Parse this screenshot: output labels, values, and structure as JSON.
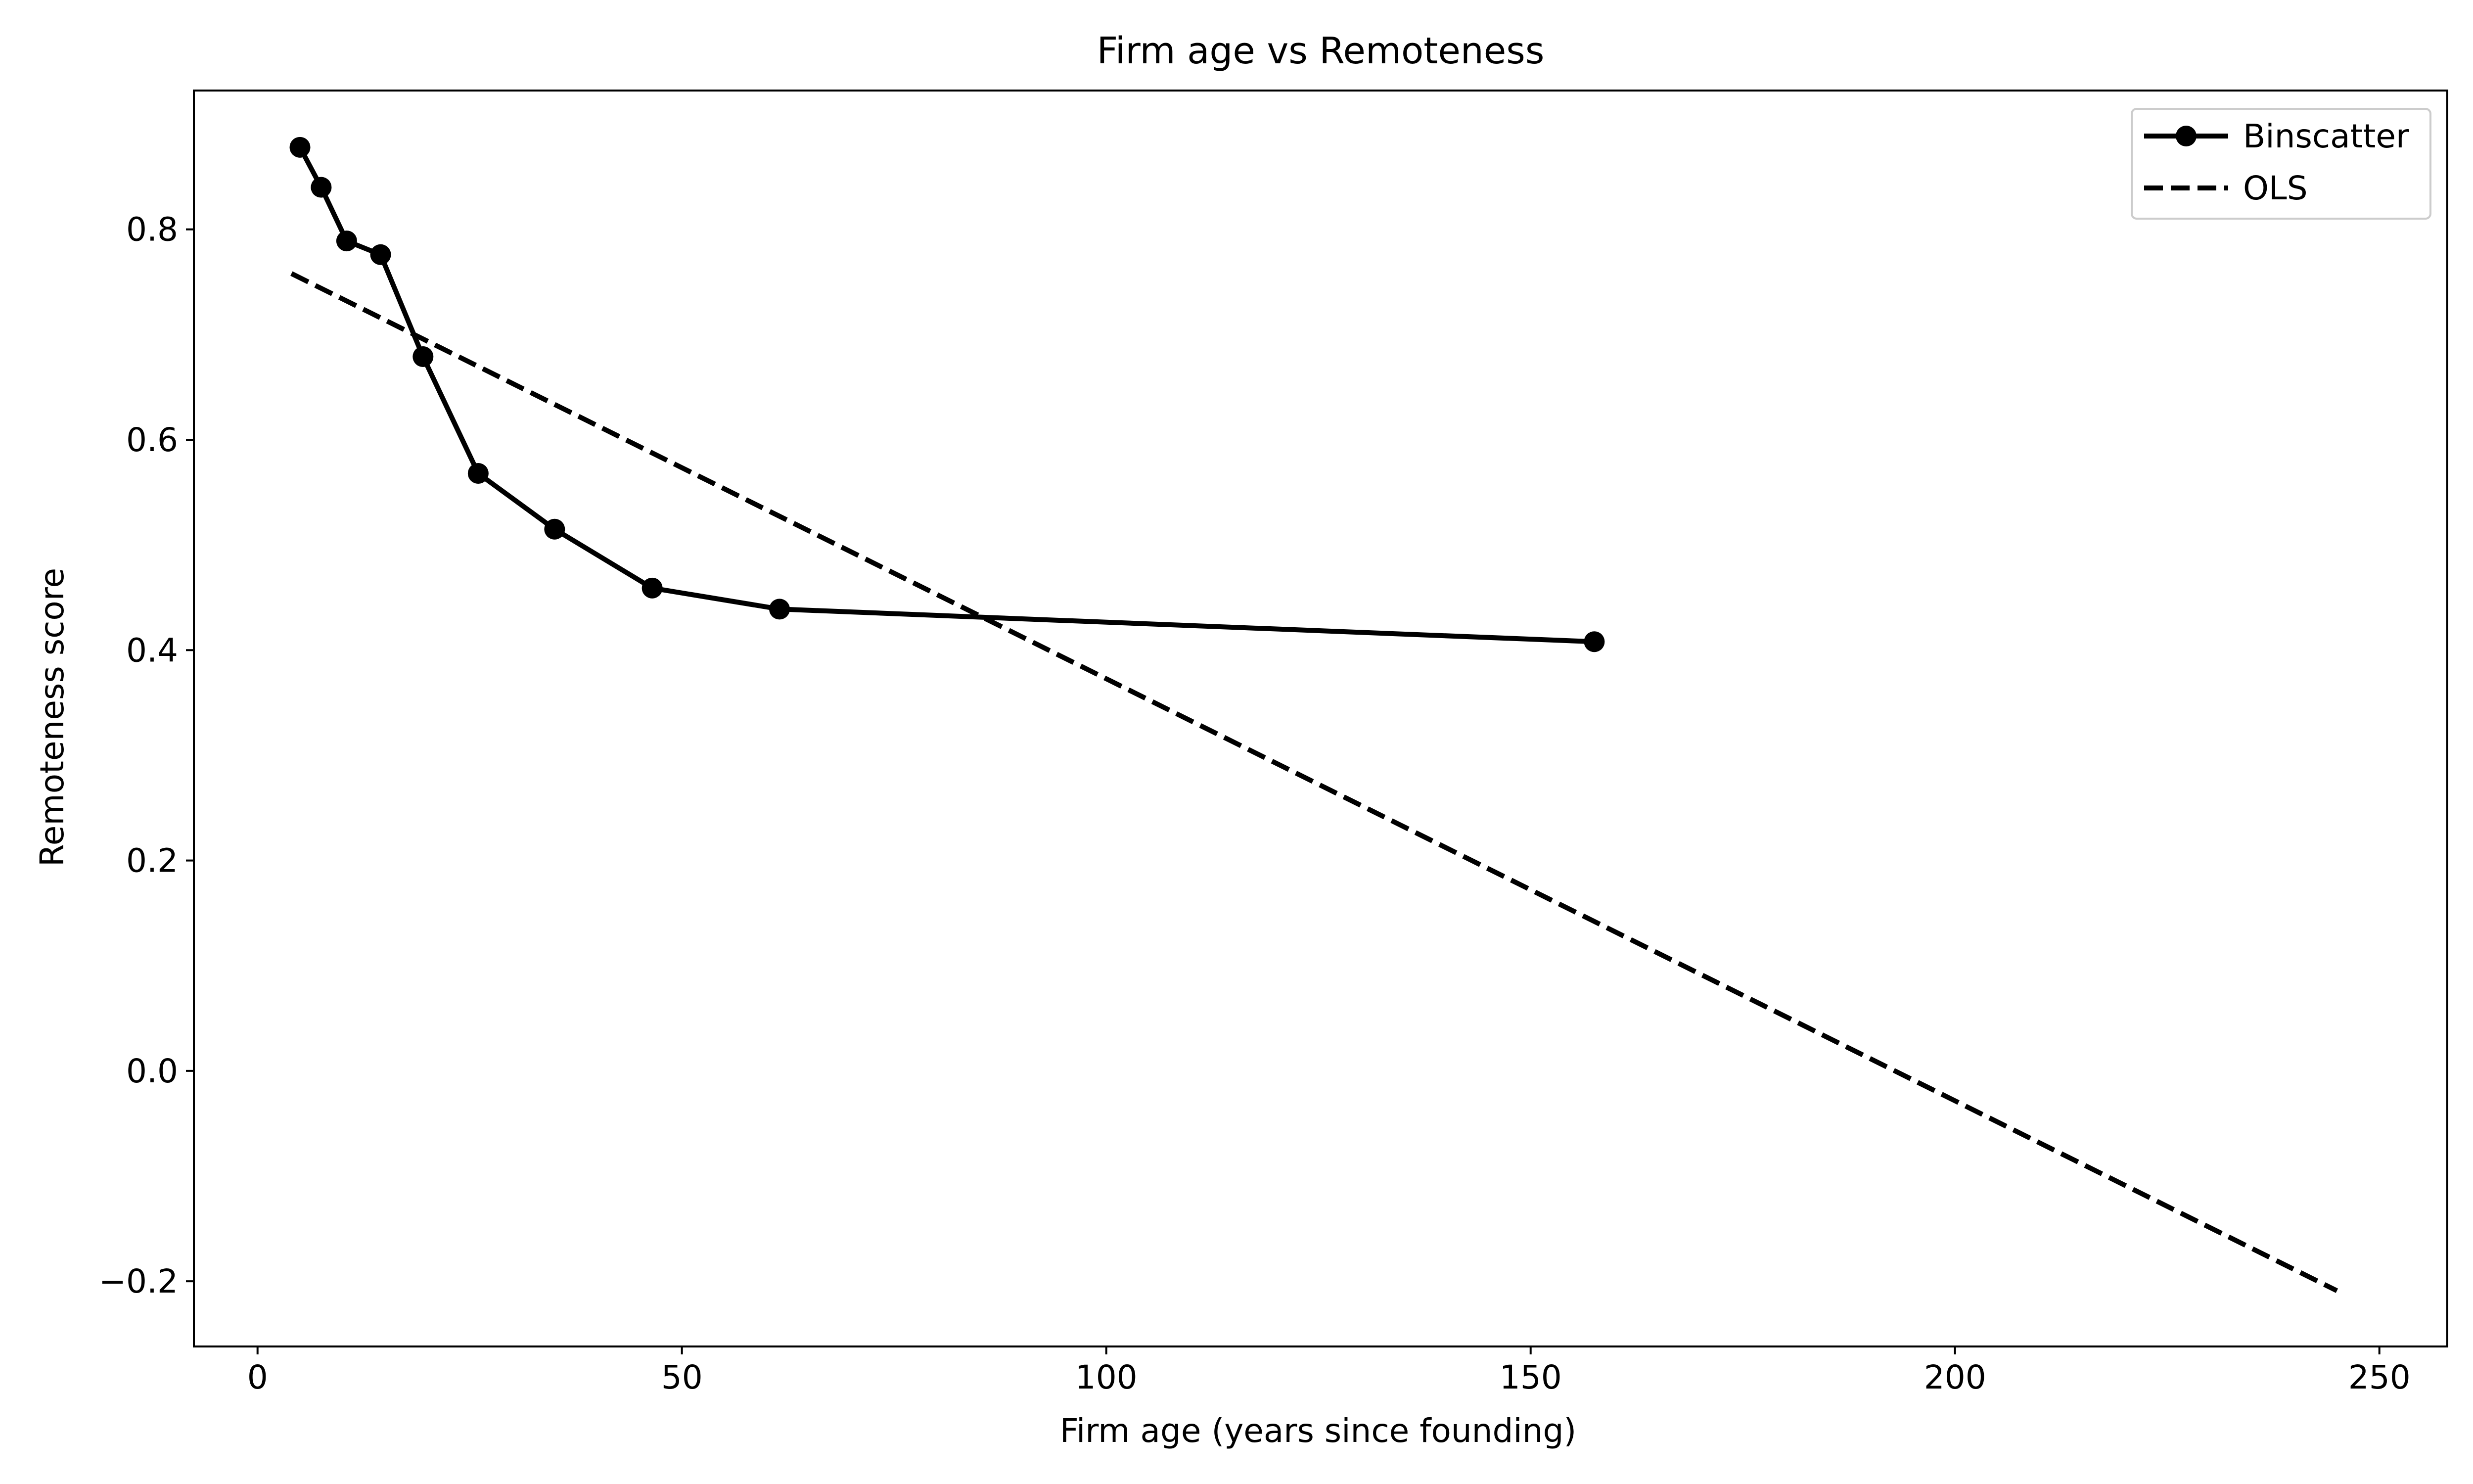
{
  "chart_data": {
    "type": "line",
    "title": "Firm age vs Remoteness",
    "xlabel": "Firm age (years since founding)",
    "ylabel": "Remoteness score",
    "xlim": [
      -7.5,
      258
    ],
    "ylim": [
      -0.262,
      0.932
    ],
    "xticks": [
      0,
      50,
      100,
      150,
      200,
      250
    ],
    "yticks": [
      -0.2,
      0.0,
      0.2,
      0.4,
      0.6,
      0.8
    ],
    "xtick_labels": [
      "0",
      "50",
      "100",
      "150",
      "200",
      "250"
    ],
    "ytick_labels": [
      "−0.2",
      "0.0",
      "0.2",
      "0.4",
      "0.6",
      "0.8"
    ],
    "grid": false,
    "legend_position": "top-right",
    "series": [
      {
        "name": "Binscatter",
        "style": "solid-with-markers",
        "color": "#000000",
        "x": [
          5.0,
          7.5,
          10.5,
          14.5,
          19.5,
          26.0,
          35.0,
          46.5,
          61.5,
          157.5
        ],
        "y": [
          0.878,
          0.84,
          0.789,
          0.776,
          0.679,
          0.568,
          0.515,
          0.459,
          0.439,
          0.408
        ]
      },
      {
        "name": "OLS",
        "style": "dashed",
        "color": "#000000",
        "x": [
          4.0,
          245.0
        ],
        "y": [
          0.758,
          -0.209
        ]
      }
    ]
  }
}
